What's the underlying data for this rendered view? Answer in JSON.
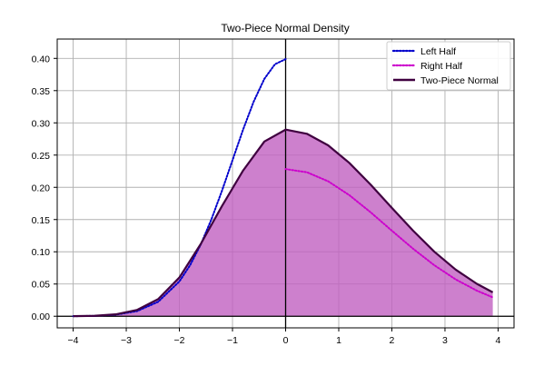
{
  "chart_data": {
    "type": "line",
    "title": "Two-Piece Normal Density",
    "xlabel": "",
    "ylabel": "",
    "xlim": [
      -4.3,
      4.3
    ],
    "ylim": [
      -0.018,
      0.43
    ],
    "xticks": [
      -4,
      -3,
      -2,
      -1,
      0,
      1,
      2,
      3,
      4
    ],
    "yticks": [
      0.0,
      0.05,
      0.1,
      0.15,
      0.2,
      0.25,
      0.3,
      0.35,
      0.4
    ],
    "xtick_labels": [
      "−4",
      "−3",
      "−2",
      "−1",
      "0",
      "1",
      "2",
      "3",
      "4"
    ],
    "ytick_labels": [
      "0.00",
      "0.05",
      "0.10",
      "0.15",
      "0.20",
      "0.25",
      "0.30",
      "0.35",
      "0.40"
    ],
    "grid": true,
    "legend_position": "top-right",
    "annotations": [
      "horizontal line at y=0",
      "vertical line at x=0",
      "area under Two-Piece Normal filled"
    ],
    "series": [
      {
        "name": "Left Half",
        "style": "dotted",
        "color": "#0000cc",
        "x": [
          -4.0,
          -3.6,
          -3.2,
          -2.8,
          -2.4,
          -2.0,
          -1.8,
          -1.6,
          -1.4,
          -1.2,
          -1.0,
          -0.8,
          -0.6,
          -0.4,
          -0.2,
          0.0
        ],
        "y": [
          0.0001,
          0.0006,
          0.0024,
          0.0079,
          0.0224,
          0.054,
          0.079,
          0.1109,
          0.1497,
          0.1942,
          0.242,
          0.2897,
          0.3332,
          0.3683,
          0.391,
          0.3989
        ]
      },
      {
        "name": "Right Half",
        "style": "dotted",
        "color": "#cc00cc",
        "x": [
          0.0,
          0.4,
          0.8,
          1.2,
          1.6,
          2.0,
          2.4,
          2.8,
          3.2,
          3.6,
          3.9
        ],
        "y": [
          0.2283,
          0.2234,
          0.2094,
          0.1878,
          0.1613,
          0.1327,
          0.1047,
          0.0791,
          0.0572,
          0.0397,
          0.0293
        ]
      },
      {
        "name": "Two-Piece Normal",
        "style": "solid",
        "color": "#400040",
        "fill_color": "#c060c0",
        "x": [
          -4.0,
          -3.6,
          -3.2,
          -2.8,
          -2.4,
          -2.0,
          -1.6,
          -1.2,
          -0.8,
          -0.4,
          0.0,
          0.4,
          0.8,
          1.2,
          1.6,
          2.0,
          2.4,
          2.8,
          3.2,
          3.6,
          3.9
        ],
        "y": [
          0.0001,
          0.0007,
          0.0029,
          0.0097,
          0.0266,
          0.0601,
          0.1118,
          0.1707,
          0.2261,
          0.2711,
          0.2895,
          0.2831,
          0.2652,
          0.2378,
          0.2043,
          0.1681,
          0.1327,
          0.1001,
          0.0724,
          0.0503,
          0.0371
        ]
      }
    ]
  }
}
